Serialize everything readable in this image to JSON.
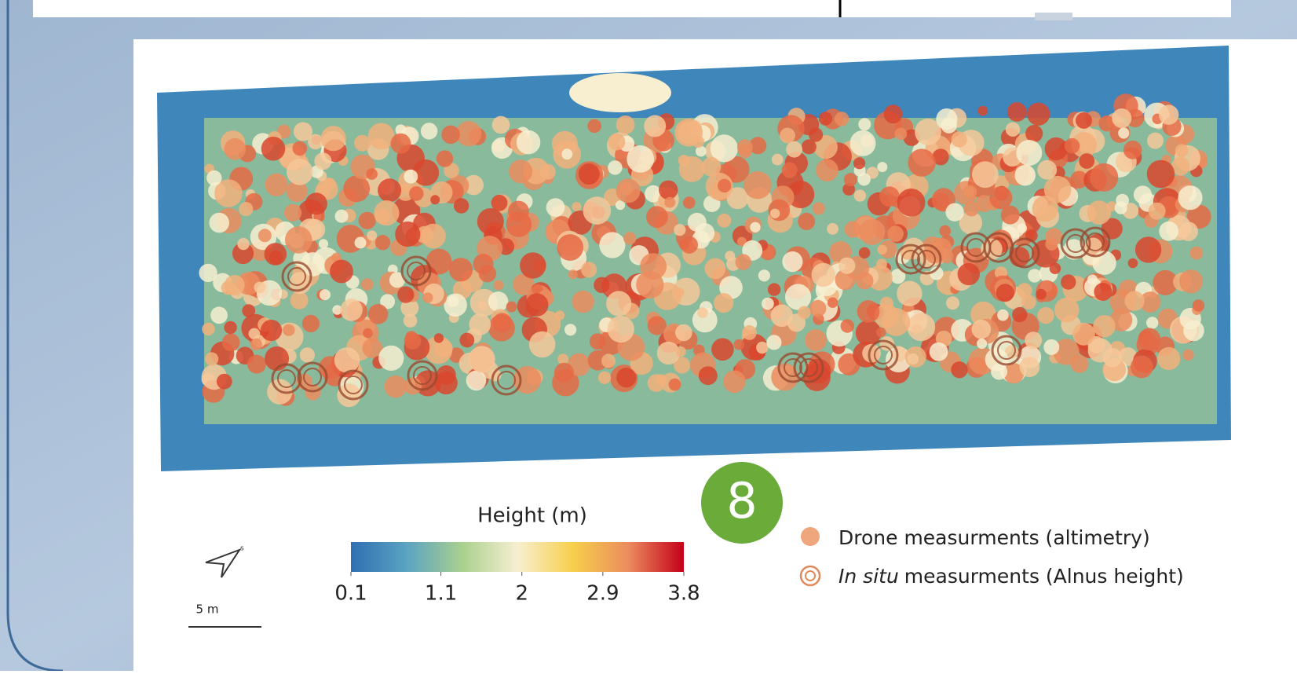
{
  "figure": {
    "badge": "8",
    "scale_label": "5 m",
    "north_label": "s"
  },
  "colorbar": {
    "title": "Height (m)",
    "range": [
      0.1,
      3.8
    ],
    "ticks": [
      0.1,
      1.1,
      2,
      2.9,
      3.8
    ],
    "colors": [
      "#2f6fb2",
      "#5aa3c2",
      "#a9d08e",
      "#f7efd0",
      "#f7cf4c",
      "#eb8c5e",
      "#c40018"
    ]
  },
  "legend": [
    {
      "label": "Drone measurments (altimetry)",
      "color": "#f0a67c"
    },
    {
      "italic": "In situ",
      "label": "measurments (Alnus height)",
      "color": "#e0885a"
    }
  ]
}
